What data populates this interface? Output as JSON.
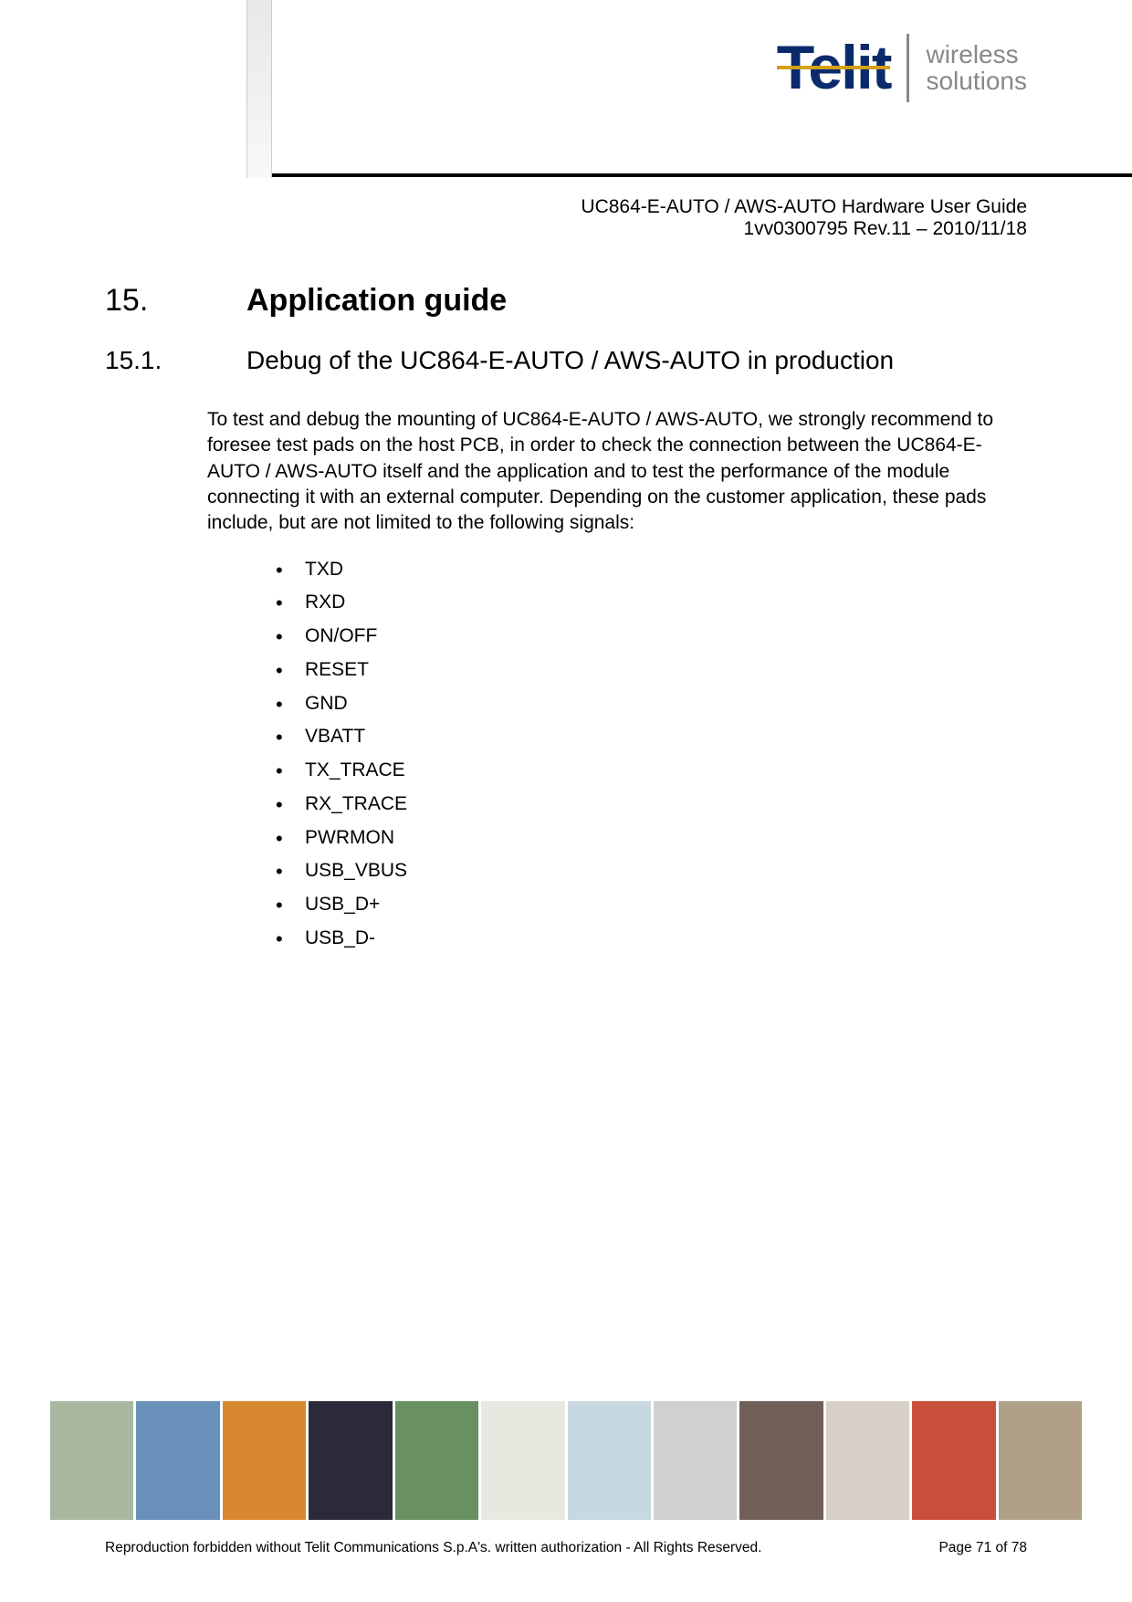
{
  "header": {
    "logo_brand": "Telit",
    "logo_tag_line1": "wireless",
    "logo_tag_line2": "solutions",
    "doc_title": "UC864-E-AUTO / AWS-AUTO Hardware User Guide",
    "doc_rev": "1vv0300795 Rev.11 – 2010/11/18",
    "brand_color": "#0a2a6b",
    "accent_color": "#d4a017",
    "tag_color": "#888888"
  },
  "content": {
    "h1_num": "15.",
    "h1_title": "Application guide",
    "h2_num": "15.1.",
    "h2_title": "Debug of the UC864-E-AUTO / AWS-AUTO in production",
    "paragraph": "To test and debug the mounting of UC864-E-AUTO / AWS-AUTO, we strongly recommend to foresee test pads on the host PCB, in order to check the connection between the UC864-E-AUTO / AWS-AUTO itself and the application and to test the performance of the module connecting it with an external computer. Depending on the customer application, these pads include, but are not limited to the following signals:",
    "signals": [
      "TXD",
      "RXD",
      "ON/OFF",
      "RESET",
      "GND",
      "VBATT",
      "TX_TRACE",
      "RX_TRACE",
      "PWRMON",
      "USB_VBUS",
      "USB_D+",
      "USB_D-"
    ]
  },
  "footer": {
    "strip_colors": [
      "#a8b8a0",
      "#6890b8",
      "#d88830",
      "#2a2a3a",
      "#689060",
      "#e8e8e0",
      "#c8d8e0",
      "#d0d0d0",
      "#706058",
      "#d8d0c8",
      "#c8503a",
      "#b0a088"
    ],
    "copyright": "Reproduction forbidden without Telit Communications S.p.A's. written authorization - All Rights Reserved.",
    "page": "Page 71 of 78"
  }
}
